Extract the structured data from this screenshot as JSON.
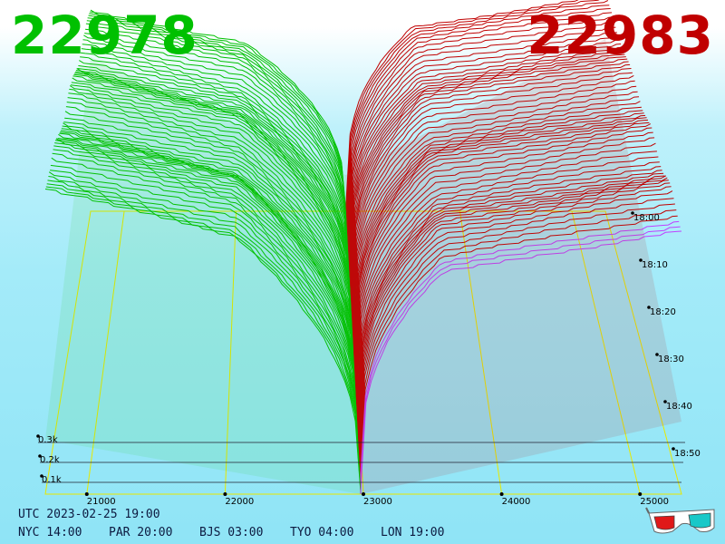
{
  "prices": {
    "bid": "22978",
    "ask": "22983"
  },
  "colors": {
    "bid": "#00c000",
    "ask": "#c00000",
    "grid": "#e8e800",
    "accent": "#c040ff"
  },
  "footer": {
    "utc": "UTC 2023-02-25 19:00",
    "zones": [
      "NYC 14:00",
      "PAR 20:00",
      "BJS 03:00",
      "TYO 04:00",
      "LON 19:00"
    ]
  },
  "icons": {
    "glasses": "3d-glasses-icon"
  },
  "chart_data": {
    "type": "area",
    "title": "",
    "x_axis": {
      "label": "",
      "ticks": [
        "21000",
        "22000",
        "23000",
        "24000",
        "25000"
      ],
      "range": [
        20700,
        25300
      ]
    },
    "y_axis": {
      "label": "",
      "ticks": [
        "0.1k",
        "0.2k",
        "0.3k"
      ]
    },
    "time_axis": {
      "label": "",
      "ticks": [
        "18:00",
        "18:10",
        "18:20",
        "18:30",
        "18:40",
        "18:50"
      ]
    },
    "mid_price": 22980,
    "series": [
      {
        "name": "bids",
        "side": "bid",
        "color": "#00c000",
        "slices": 60
      },
      {
        "name": "asks",
        "side": "ask",
        "color": "#c00000",
        "slices": 60
      }
    ],
    "grid": true
  }
}
